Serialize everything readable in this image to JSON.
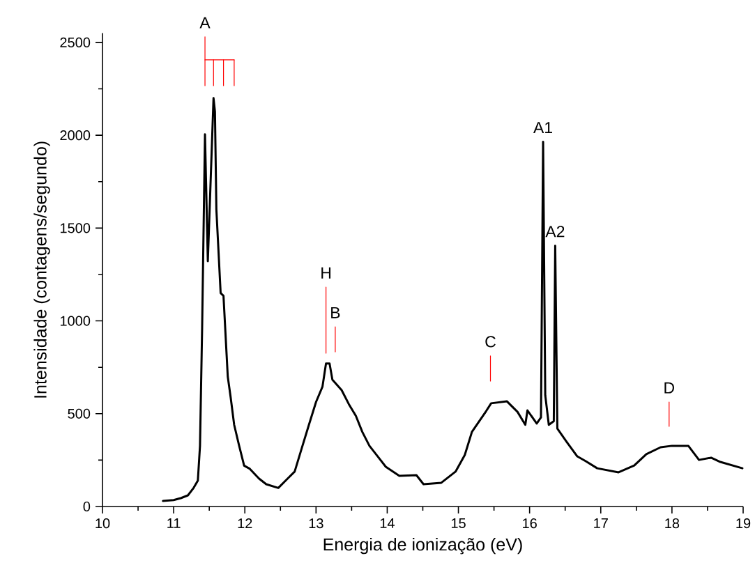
{
  "chart_data": {
    "type": "line",
    "xlabel": "Energia de ionização (eV)",
    "ylabel": "Intensidade (contagens/segundo)",
    "xlim": [
      10,
      19
    ],
    "ylim": [
      0,
      2550
    ],
    "xticks": [
      10,
      11,
      12,
      13,
      14,
      15,
      16,
      17,
      18,
      19
    ],
    "yticks": [
      0,
      500,
      1000,
      1500,
      2000,
      2500
    ],
    "series": [
      {
        "color": "#000000",
        "x": [
          10.85,
          11.0,
          11.1,
          11.2,
          11.28,
          11.34,
          11.37,
          11.4,
          11.44,
          11.48,
          11.56,
          11.58,
          11.6,
          11.66,
          11.7,
          11.76,
          11.8,
          11.85,
          11.92,
          11.99,
          12.07,
          12.2,
          12.3,
          12.47,
          12.6,
          12.7,
          12.8,
          12.9,
          13.0,
          13.09,
          13.14,
          13.19,
          13.23,
          13.36,
          13.46,
          13.56,
          13.65,
          13.75,
          13.88,
          13.98,
          14.17,
          14.41,
          14.51,
          14.76,
          14.96,
          15.09,
          15.19,
          15.39,
          15.46,
          15.68,
          15.83,
          15.94,
          15.97,
          16.1,
          16.16,
          16.19,
          16.22,
          16.27,
          16.34,
          16.36,
          16.39,
          16.52,
          16.67,
          16.79,
          16.95,
          17.25,
          17.47,
          17.64,
          17.84,
          18.0,
          18.23,
          18.38,
          18.55,
          18.68,
          18.99
        ],
        "values": [
          30,
          35,
          45,
          60,
          100,
          140,
          327,
          965,
          2005,
          1321,
          2200,
          2128,
          1600,
          1150,
          1135,
          700,
          590,
          440,
          327,
          220,
          203,
          150,
          120,
          100,
          150,
          188,
          315,
          440,
          563,
          645,
          770,
          770,
          683,
          627,
          552,
          488,
          402,
          327,
          263,
          214,
          165,
          169,
          120,
          128,
          188,
          278,
          402,
          514,
          556,
          567,
          510,
          440,
          518,
          447,
          480,
          1965,
          600,
          440,
          460,
          1405,
          420,
          349,
          270,
          244,
          206,
          184,
          221,
          282,
          319,
          327,
          327,
          251,
          263,
          240,
          206
        ]
      },
      {
        "color": "#ff0000",
        "x": [
          11.44,
          11.44
        ],
        "values": [
          2267,
          2530
        ]
      },
      {
        "color": "#ff0000",
        "x": [
          11.44,
          11.85
        ],
        "values": [
          2406,
          2406
        ]
      },
      {
        "color": "#ff0000",
        "x": [
          11.56,
          11.56
        ],
        "values": [
          2267,
          2406
        ]
      },
      {
        "color": "#ff0000",
        "x": [
          11.7,
          11.7
        ],
        "values": [
          2267,
          2406
        ]
      },
      {
        "color": "#ff0000",
        "x": [
          11.85,
          11.85
        ],
        "values": [
          2267,
          2406
        ]
      },
      {
        "color": "#ff0000",
        "x": [
          13.14,
          13.14
        ],
        "values": [
          826,
          1182
        ]
      },
      {
        "color": "#ff0000",
        "x": [
          13.27,
          13.27
        ],
        "values": [
          833,
          968
        ]
      },
      {
        "color": "#ff0000",
        "x": [
          15.45,
          15.45
        ],
        "values": [
          676,
          811
        ]
      },
      {
        "color": "#ff0000",
        "x": [
          17.96,
          17.96
        ],
        "values": [
          432,
          563
        ]
      }
    ],
    "annotations": [
      {
        "text": "A",
        "x": 11.44,
        "y": 2530
      },
      {
        "text": "H",
        "x": 13.14,
        "y": 1182
      },
      {
        "text": "B",
        "x": 13.27,
        "y": 968
      },
      {
        "text": "C",
        "x": 15.45,
        "y": 811
      },
      {
        "text": "D",
        "x": 17.96,
        "y": 563
      },
      {
        "text": "A1",
        "x": 16.19,
        "y": 1965
      },
      {
        "text": "A2",
        "x": 16.36,
        "y": 1405
      }
    ]
  }
}
